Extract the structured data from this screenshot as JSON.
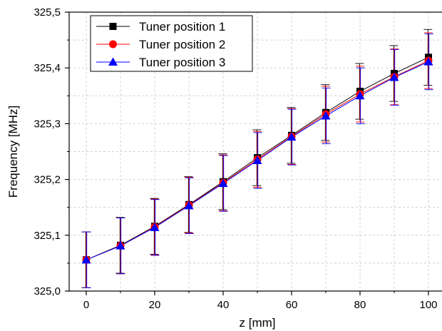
{
  "chart_data": {
    "type": "line",
    "title": "",
    "xlabel": "z [mm]",
    "ylabel": "Frequency [MHz]",
    "xlim": [
      -5,
      105
    ],
    "ylim": [
      325.0,
      325.5
    ],
    "x_ticks": [
      0,
      20,
      40,
      60,
      80,
      100
    ],
    "x_tick_labels": [
      "0",
      "20",
      "40",
      "60",
      "80",
      "100"
    ],
    "y_ticks": [
      325.0,
      325.1,
      325.2,
      325.3,
      325.4,
      325.5
    ],
    "y_tick_labels": [
      "325,0",
      "325,1",
      "325,2",
      "325,3",
      "325,4",
      "325,5"
    ],
    "grid": true,
    "legend_position": "top-left",
    "x": [
      0,
      10,
      20,
      30,
      40,
      50,
      60,
      70,
      80,
      90,
      100
    ],
    "series": [
      {
        "name": "Tuner position 1",
        "color": "#000000",
        "marker": "square",
        "values": [
          325.056,
          325.082,
          325.116,
          325.155,
          325.196,
          325.239,
          325.279,
          325.32,
          325.358,
          325.39,
          325.419
        ],
        "error": [
          0.05,
          0.05,
          0.05,
          0.05,
          0.05,
          0.05,
          0.05,
          0.05,
          0.05,
          0.05,
          0.05
        ]
      },
      {
        "name": "Tuner position 2",
        "color": "#ff0000",
        "marker": "circle",
        "values": [
          325.056,
          325.081,
          325.115,
          325.154,
          325.194,
          325.236,
          325.277,
          325.317,
          325.353,
          325.384,
          325.413
        ],
        "error": [
          0.05,
          0.05,
          0.05,
          0.05,
          0.05,
          0.05,
          0.05,
          0.05,
          0.05,
          0.05,
          0.05
        ]
      },
      {
        "name": "Tuner position 3",
        "color": "#0000ff",
        "marker": "triangle",
        "values": [
          325.056,
          325.081,
          325.114,
          325.153,
          325.193,
          325.234,
          325.276,
          325.314,
          325.35,
          325.383,
          325.411
        ],
        "error": [
          0.05,
          0.05,
          0.05,
          0.05,
          0.05,
          0.05,
          0.05,
          0.05,
          0.05,
          0.05,
          0.05
        ]
      }
    ]
  }
}
